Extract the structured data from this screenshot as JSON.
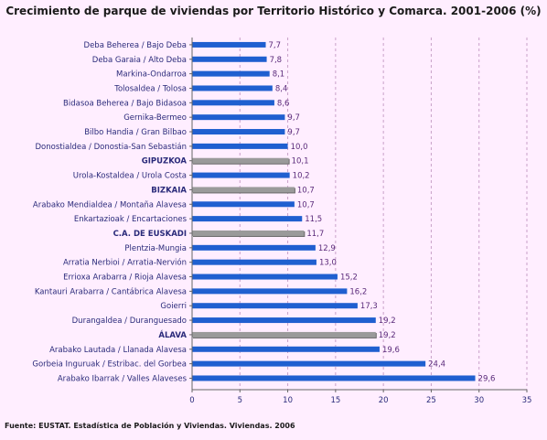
{
  "title": "Crecimiento de parque de viviendas por Territorio Histórico y Comarca. 2001-2006 (%)",
  "source": "Fuente: EUSTAT. Estadística de Población y Viviendas. Viviendas. 2006",
  "colors": {
    "background": "#ffeeff",
    "bar": "#1f5fd0",
    "highlight_bar": "#9a9a9a",
    "category_text": "#2a2a7a",
    "value_text": "#5a2a7a"
  },
  "chart_data": {
    "type": "bar",
    "orientation": "horizontal",
    "title": "Crecimiento de parque de viviendas por Territorio Histórico y Comarca. 2001-2006 (%)",
    "xlim": [
      0,
      35
    ],
    "xticks": [
      "0",
      "5",
      "10",
      "15",
      "20",
      "25",
      "30",
      "35"
    ],
    "grid": "vertical dashed",
    "categories": [
      "Deba Beherea  /  Bajo Deba",
      "Deba Garaia  /  Alto Deba",
      "Markina-Ondarroa",
      "Tolosaldea  /  Tolosa",
      "Bidasoa Beherea  /  Bajo Bidasoa",
      "Gernika-Bermeo",
      "Bilbo Handia  /  Gran Bilbao",
      "Donostialdea  /  Donostia-San Sebastián",
      "GIPUZKOA",
      "Urola-Kostaldea  /  Urola Costa",
      "BIZKAIA",
      "Arabako Mendialdea  /  Montaña Alavesa",
      "Enkartazioak  /  Encartaciones",
      "C.A. DE EUSKADI",
      "Plentzia-Mungia",
      "Arratia Nerbioi  /  Arratia-Nervión",
      "Errioxa Arabarra  /  Rioja Alavesa",
      "Kantauri Arabarra  /  Cantábrica Alavesa",
      "Goierri",
      "Durangaldea  /  Duranguesado",
      "ÁLAVA",
      "Arabako Lautada  /  Llanada Alavesa",
      "Gorbeia Inguruak  /  Estribac. del Gorbea",
      "Arabako Ibarrak  /  Valles Alaveses"
    ],
    "values": [
      7.7,
      7.8,
      8.1,
      8.4,
      8.6,
      9.7,
      9.7,
      10.0,
      10.1,
      10.2,
      10.7,
      10.7,
      11.5,
      11.7,
      12.9,
      13.0,
      15.2,
      16.2,
      17.3,
      19.2,
      19.2,
      19.6,
      24.4,
      29.6
    ],
    "value_labels": [
      "7,7",
      "7,8",
      "8,1",
      "8,4",
      "8,6",
      "9,7",
      "9,7",
      "10,0",
      "10,1",
      "10,2",
      "10,7",
      "10,7",
      "11,5",
      "11,7",
      "12,9",
      "13,0",
      "15,2",
      "16,2",
      "17,3",
      "19,2",
      "19,2",
      "19,6",
      "24,4",
      "29,6"
    ],
    "highlighted": [
      "GIPUZKOA",
      "BIZKAIA",
      "C.A. DE EUSKADI",
      "ÁLAVA"
    ]
  }
}
